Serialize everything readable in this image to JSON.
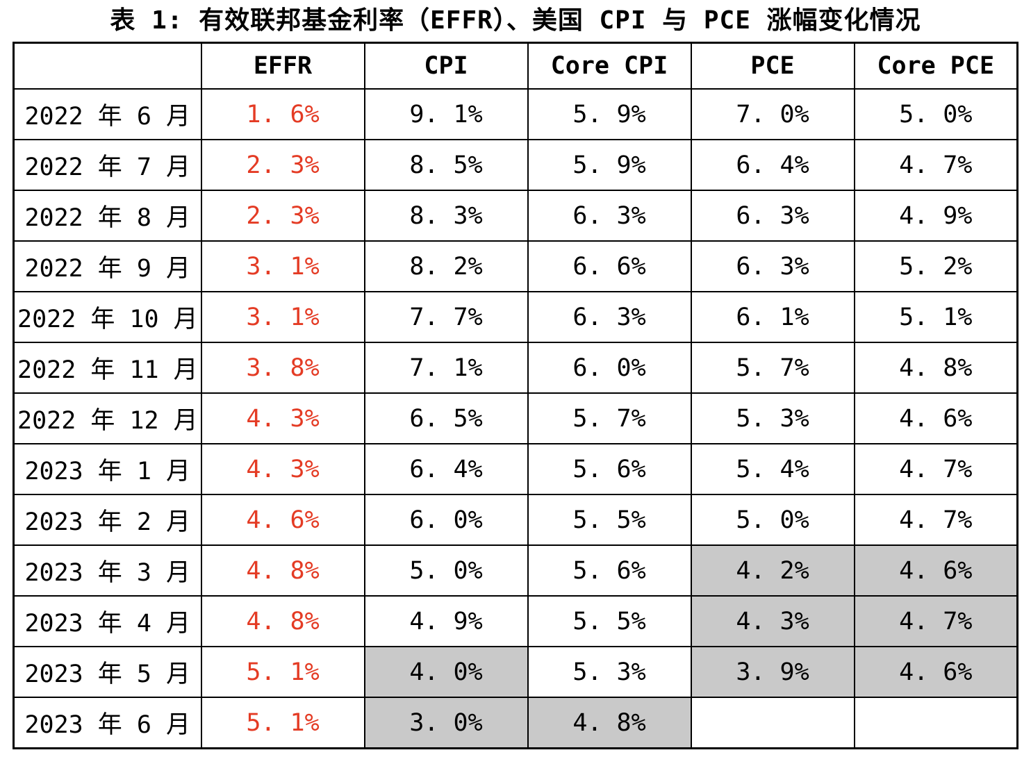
{
  "title": "表 1: 有效联邦基金利率（EFFR）、美国 CPI 与 PCE 涨幅变化情况",
  "colors": {
    "effr_text": "#e43b24",
    "highlight_cell": "#c9c9c9",
    "border": "#000000"
  },
  "table": {
    "columns": [
      "",
      "EFFR",
      "CPI",
      "Core CPI",
      "PCE",
      "Core PCE"
    ],
    "rows": [
      {
        "label": "2022 年 6 月",
        "effr": "1. 6%",
        "cpi": "9. 1%",
        "core_cpi": "5. 9%",
        "pce": "7. 0%",
        "core_pce": "5. 0%",
        "gray": []
      },
      {
        "label": "2022 年 7 月",
        "effr": "2. 3%",
        "cpi": "8. 5%",
        "core_cpi": "5. 9%",
        "pce": "6. 4%",
        "core_pce": "4. 7%",
        "gray": []
      },
      {
        "label": "2022 年 8 月",
        "effr": "2. 3%",
        "cpi": "8. 3%",
        "core_cpi": "6. 3%",
        "pce": "6. 3%",
        "core_pce": "4. 9%",
        "gray": []
      },
      {
        "label": "2022 年 9 月",
        "effr": "3. 1%",
        "cpi": "8. 2%",
        "core_cpi": "6. 6%",
        "pce": "6. 3%",
        "core_pce": "5. 2%",
        "gray": []
      },
      {
        "label": "2022 年 10 月",
        "effr": "3. 1%",
        "cpi": "7. 7%",
        "core_cpi": "6. 3%",
        "pce": "6. 1%",
        "core_pce": "5. 1%",
        "gray": []
      },
      {
        "label": "2022 年 11 月",
        "effr": "3. 8%",
        "cpi": "7. 1%",
        "core_cpi": "6. 0%",
        "pce": "5. 7%",
        "core_pce": "4. 8%",
        "gray": []
      },
      {
        "label": "2022 年 12 月",
        "effr": "4. 3%",
        "cpi": "6. 5%",
        "core_cpi": "5. 7%",
        "pce": "5. 3%",
        "core_pce": "4. 6%",
        "gray": []
      },
      {
        "label": "2023 年 1 月",
        "effr": "4. 3%",
        "cpi": "6. 4%",
        "core_cpi": "5. 6%",
        "pce": "5. 4%",
        "core_pce": "4. 7%",
        "gray": []
      },
      {
        "label": "2023 年 2 月",
        "effr": "4. 6%",
        "cpi": "6. 0%",
        "core_cpi": "5. 5%",
        "pce": "5. 0%",
        "core_pce": "4. 7%",
        "gray": []
      },
      {
        "label": "2023 年 3 月",
        "effr": "4. 8%",
        "cpi": "5. 0%",
        "core_cpi": "5. 6%",
        "pce": "4. 2%",
        "core_pce": "4. 6%",
        "gray": [
          "pce",
          "core_pce"
        ]
      },
      {
        "label": "2023 年 4 月",
        "effr": "4. 8%",
        "cpi": "4. 9%",
        "core_cpi": "5. 5%",
        "pce": "4. 3%",
        "core_pce": "4. 7%",
        "gray": [
          "pce",
          "core_pce"
        ]
      },
      {
        "label": "2023 年 5 月",
        "effr": "5. 1%",
        "cpi": "4. 0%",
        "core_cpi": "5. 3%",
        "pce": "3. 9%",
        "core_pce": "4. 6%",
        "gray": [
          "cpi",
          "pce",
          "core_pce"
        ]
      },
      {
        "label": "2023 年 6 月",
        "effr": "5. 1%",
        "cpi": "3. 0%",
        "core_cpi": "4. 8%",
        "pce": "",
        "core_pce": "",
        "gray": [
          "cpi",
          "core_cpi"
        ]
      }
    ]
  }
}
